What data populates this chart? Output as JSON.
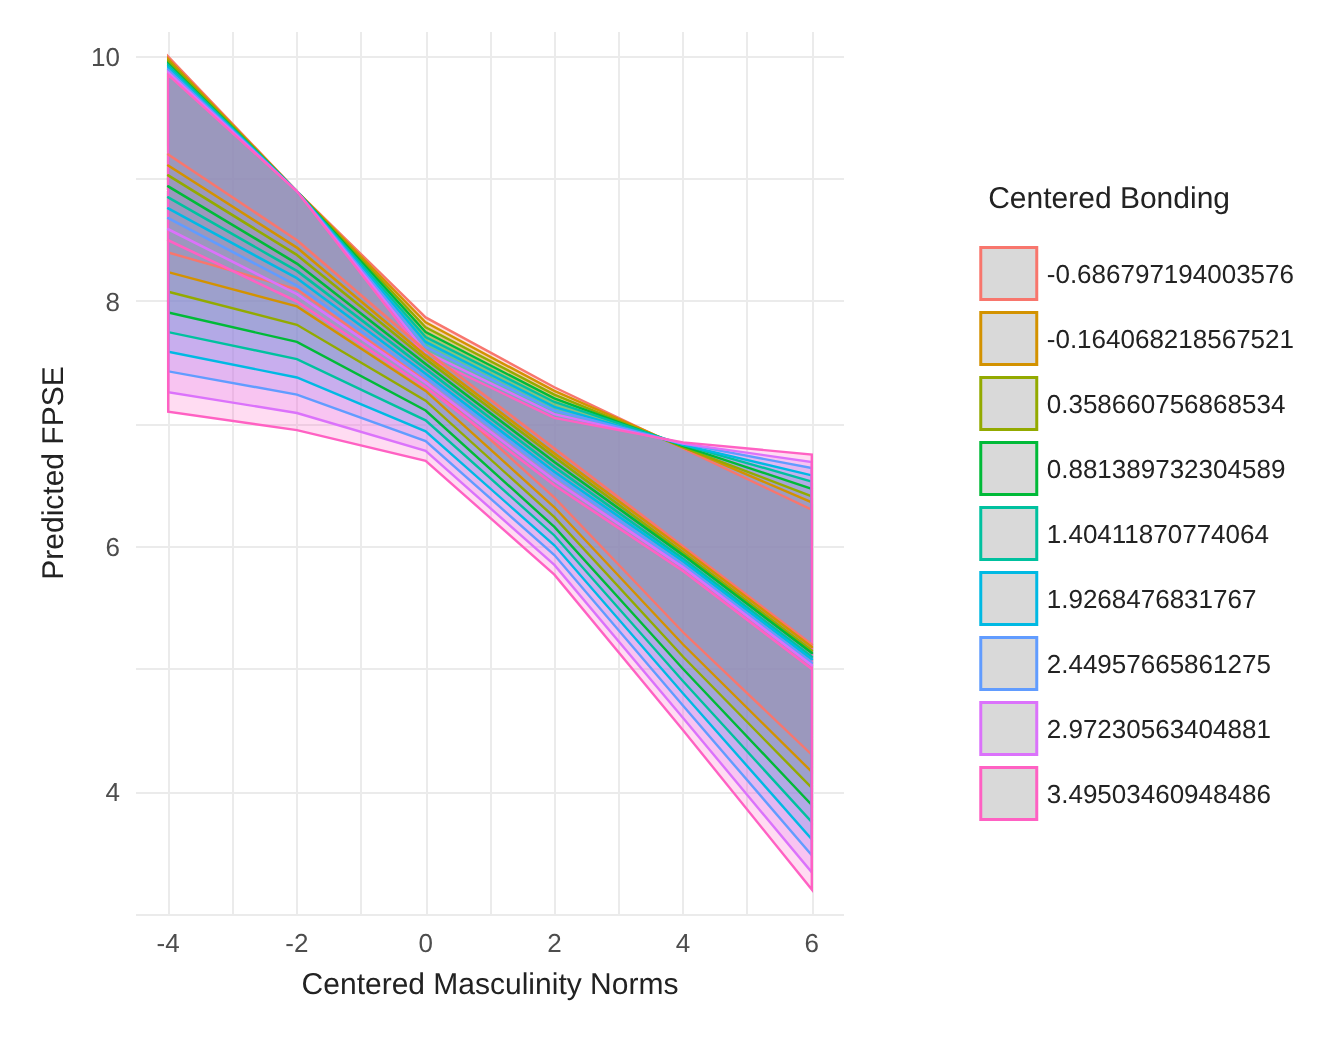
{
  "chart_data": {
    "type": "line",
    "xlabel": "Centered Masculinity Norms",
    "ylabel": "Predicted FPSE",
    "legend_title": "Centered Bonding",
    "legend": "right",
    "grid": true,
    "marker": "none",
    "line_style": "solid",
    "x": [
      -4,
      -2,
      0,
      2,
      4,
      6
    ],
    "xlim": [
      -4.5,
      6.5
    ],
    "xticks": [
      -4,
      {
        "value": -3,
        "label": null
      },
      -2,
      {
        "value": -1,
        "label": null
      },
      0,
      {
        "value": 1,
        "label": null
      },
      2,
      {
        "value": 3,
        "label": null
      },
      4,
      {
        "value": 5,
        "label": null
      },
      6
    ],
    "ylim": [
      3.0,
      10.2
    ],
    "yticks": [
      {
        "value": 3,
        "label": null
      },
      4,
      {
        "value": 5,
        "label": null
      },
      6,
      {
        "value": 7,
        "label": null
      },
      8,
      {
        "value": 9,
        "label": null
      },
      10
    ],
    "series": [
      {
        "name": "-0.686797194003576",
        "color": "#f8766d",
        "values": [
          9.2,
          8.5,
          7.6,
          6.8,
          6.0,
          5.2
        ],
        "lower": [
          8.4,
          8.1,
          7.35,
          6.4,
          5.3,
          4.3
        ],
        "upper": [
          10.0,
          8.9,
          7.87,
          7.3,
          6.8,
          6.3
        ]
      },
      {
        "name": "-0.164068218567521",
        "color": "#d39200",
        "values": [
          9.11,
          8.44,
          7.56,
          6.76,
          5.98,
          5.18
        ],
        "lower": [
          8.24,
          7.96,
          7.27,
          6.32,
          5.2,
          4.16
        ],
        "upper": [
          9.98,
          8.9,
          7.83,
          7.27,
          6.81,
          6.36
        ]
      },
      {
        "name": "0.358660756868534",
        "color": "#93aa00",
        "values": [
          9.03,
          8.38,
          7.53,
          6.73,
          5.95,
          5.15
        ],
        "lower": [
          8.08,
          7.81,
          7.19,
          6.24,
          5.1,
          4.03
        ],
        "upper": [
          9.96,
          8.9,
          7.79,
          7.24,
          6.81,
          6.41
        ]
      },
      {
        "name": "0.881389732304589",
        "color": "#00ba38",
        "values": [
          8.94,
          8.31,
          7.49,
          6.69,
          5.93,
          5.13
        ],
        "lower": [
          7.91,
          7.67,
          7.11,
          6.16,
          5.0,
          3.89
        ],
        "upper": [
          9.94,
          8.9,
          7.75,
          7.21,
          6.82,
          6.47
        ]
      },
      {
        "name": "1.40411870774064",
        "color": "#00c19f",
        "values": [
          8.85,
          8.25,
          7.45,
          6.65,
          5.9,
          5.1
        ],
        "lower": [
          7.75,
          7.53,
          7.03,
          6.09,
          4.9,
          3.75
        ],
        "upper": [
          9.93,
          8.9,
          7.71,
          7.18,
          6.83,
          6.53
        ]
      },
      {
        "name": "1.9268476831767",
        "color": "#00b9e3",
        "values": [
          8.76,
          8.19,
          7.41,
          6.61,
          5.88,
          5.08
        ],
        "lower": [
          7.59,
          7.38,
          6.94,
          6.01,
          4.8,
          3.61
        ],
        "upper": [
          9.91,
          8.9,
          7.67,
          7.14,
          6.83,
          6.58
        ]
      },
      {
        "name": "2.44957665861275",
        "color": "#619cff",
        "values": [
          8.68,
          8.13,
          7.38,
          6.58,
          5.85,
          5.05
        ],
        "lower": [
          7.43,
          7.24,
          6.86,
          5.93,
          4.7,
          3.48
        ],
        "upper": [
          9.89,
          8.9,
          7.63,
          7.11,
          6.84,
          6.64
        ]
      },
      {
        "name": "2.97230563404881",
        "color": "#db72fb",
        "values": [
          8.59,
          8.06,
          7.34,
          6.54,
          5.83,
          5.03
        ],
        "lower": [
          7.26,
          7.09,
          6.78,
          5.85,
          4.6,
          3.34
        ],
        "upper": [
          9.87,
          8.9,
          7.59,
          7.08,
          6.84,
          6.69
        ]
      },
      {
        "name": "3.49503460948486",
        "color": "#ff61c3",
        "values": [
          8.5,
          8.0,
          7.3,
          6.5,
          5.8,
          5.0
        ],
        "lower": [
          7.1,
          6.95,
          6.7,
          5.77,
          4.5,
          3.2
        ],
        "upper": [
          9.85,
          8.9,
          7.55,
          7.05,
          6.85,
          6.75
        ]
      }
    ]
  }
}
